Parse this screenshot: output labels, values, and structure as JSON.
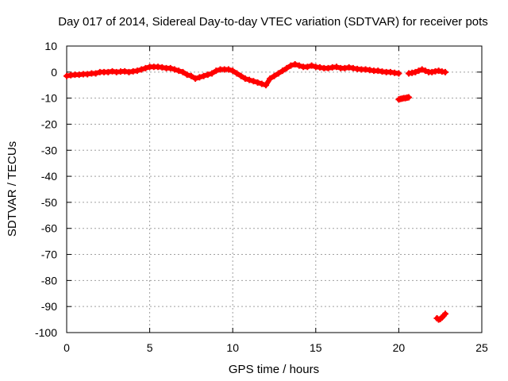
{
  "chart_data": {
    "type": "scatter",
    "title": "Day 017 of 2014, Sidereal Day-to-day VTEC variation (SDTVAR) for receiver pots",
    "xlabel": "GPS time / hours",
    "ylabel": "SDTVAR / TECUs",
    "xlim": [
      0,
      25
    ],
    "ylim": [
      -100,
      10
    ],
    "xticks": [
      0,
      5,
      10,
      15,
      20,
      25
    ],
    "yticks": [
      10,
      0,
      -10,
      -20,
      -30,
      -40,
      -50,
      -60,
      -70,
      -80,
      -90,
      -100
    ],
    "grid": true,
    "series": [
      {
        "name": "SDTVAR",
        "color": "#ff0000",
        "marker": "plus",
        "segments": [
          {
            "x": [
              0.0,
              0.25,
              0.5,
              0.75,
              1.0,
              1.25,
              1.5,
              1.75,
              2.0,
              2.25,
              2.5,
              2.75,
              3.0,
              3.25,
              3.5,
              3.75,
              4.0,
              4.25,
              4.5,
              4.75,
              5.0,
              5.25,
              5.5,
              5.75,
              6.0,
              6.25,
              6.5,
              6.75,
              7.0,
              7.25,
              7.5,
              7.75,
              8.0,
              8.25,
              8.5,
              8.75,
              9.0,
              9.25,
              9.5,
              9.75,
              10.0,
              10.25,
              10.5,
              10.75,
              11.0,
              11.25,
              11.5,
              11.75,
              12.0,
              12.25,
              12.5,
              12.75,
              13.0,
              13.25,
              13.5,
              13.75,
              14.0,
              14.25,
              14.5,
              14.75,
              15.0,
              15.25,
              15.5,
              15.75,
              16.0,
              16.25,
              16.5,
              16.75,
              17.0,
              17.25,
              17.5,
              17.75,
              18.0,
              18.25,
              18.5,
              18.75,
              19.0,
              19.25,
              19.5,
              19.75,
              20.0
            ],
            "y": [
              -1.5,
              -1.2,
              -1.0,
              -1.0,
              -0.8,
              -0.8,
              -0.5,
              -0.5,
              0.0,
              0.0,
              0.0,
              0.3,
              0.0,
              0.2,
              0.3,
              0.0,
              0.3,
              0.5,
              1.0,
              1.5,
              2.0,
              2.0,
              2.0,
              1.8,
              1.5,
              1.5,
              1.0,
              0.5,
              0.0,
              -1.0,
              -1.5,
              -2.5,
              -2.0,
              -1.5,
              -1.0,
              -0.5,
              0.5,
              1.0,
              1.0,
              1.0,
              0.5,
              -0.5,
              -1.5,
              -2.5,
              -3.0,
              -3.5,
              -4.0,
              -4.5,
              -5.0,
              -2.5,
              -1.5,
              -0.5,
              0.5,
              1.5,
              2.5,
              3.0,
              2.5,
              2.0,
              2.0,
              2.5,
              2.0,
              1.8,
              1.5,
              1.5,
              1.8,
              2.0,
              1.5,
              1.5,
              1.8,
              1.5,
              1.2,
              1.0,
              1.0,
              0.8,
              0.5,
              0.5,
              0.2,
              0.0,
              0.0,
              -0.3,
              -0.5
            ]
          },
          {
            "x": [
              20.0,
              20.1,
              20.2,
              20.3,
              20.4,
              20.5,
              20.6
            ],
            "y": [
              -10.5,
              -10.3,
              -10.2,
              -10.0,
              -10.0,
              -9.8,
              -9.7
            ]
          },
          {
            "x": [
              20.6,
              20.8,
              21.0,
              21.2,
              21.4,
              21.6,
              21.8,
              22.0,
              22.2,
              22.4,
              22.6,
              22.8
            ],
            "y": [
              -0.5,
              -0.3,
              0.0,
              0.5,
              1.0,
              0.5,
              0.0,
              0.0,
              0.3,
              0.5,
              0.2,
              0.0
            ]
          },
          {
            "x": [
              22.3,
              22.4,
              22.5,
              22.6,
              22.7,
              22.8
            ],
            "y": [
              -94.5,
              -95.0,
              -94.8,
              -94.2,
              -93.5,
              -92.8
            ]
          }
        ]
      }
    ]
  }
}
